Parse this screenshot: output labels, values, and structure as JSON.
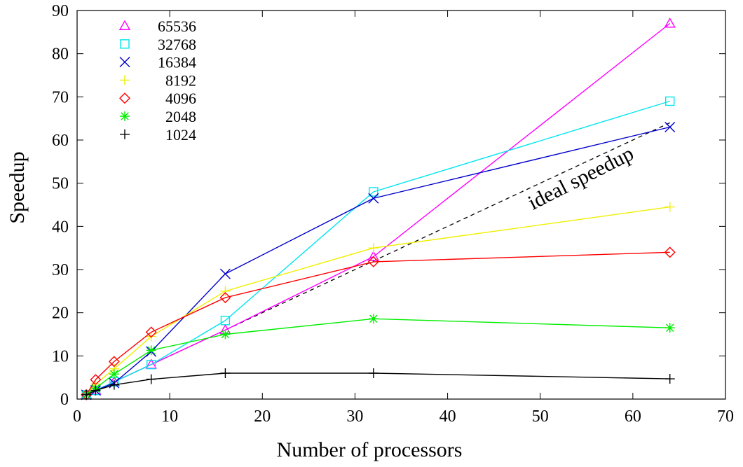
{
  "chart_data": {
    "type": "line",
    "title": "",
    "xlabel": "Number of processors",
    "ylabel": "Speedup",
    "xlim": [
      0,
      70
    ],
    "ylim": [
      0,
      90
    ],
    "xticks": [
      0,
      10,
      20,
      30,
      40,
      50,
      60,
      70
    ],
    "yticks": [
      0,
      10,
      20,
      30,
      40,
      50,
      60,
      70,
      80,
      90
    ],
    "grid": false,
    "legend_position": "top-left",
    "annotation": "ideal speedup",
    "ideal_line": {
      "x": [
        1,
        64
      ],
      "y": [
        1,
        64
      ],
      "style": "dashed",
      "color": "#000000"
    },
    "series": [
      {
        "name": "65536",
        "color": "#ff00ff",
        "marker": "triangle",
        "x": [
          1,
          2,
          4,
          8,
          16,
          32,
          64
        ],
        "y": [
          1,
          2,
          4,
          8,
          16,
          33,
          87
        ]
      },
      {
        "name": "32768",
        "color": "#00e5ee",
        "marker": "square",
        "x": [
          1,
          2,
          4,
          8,
          16,
          32,
          64
        ],
        "y": [
          1,
          2,
          4,
          8,
          18.2,
          48,
          69
        ]
      },
      {
        "name": "16384",
        "color": "#0000cd",
        "marker": "x",
        "x": [
          1,
          2,
          4,
          8,
          16,
          32,
          64
        ],
        "y": [
          1,
          2,
          3.7,
          11,
          29,
          46.5,
          63
        ]
      },
      {
        "name": "8192",
        "color": "#f0f000",
        "marker": "plus",
        "x": [
          1,
          2,
          4,
          8,
          16,
          32,
          64
        ],
        "y": [
          1,
          3.5,
          7,
          14.5,
          25,
          35,
          44.5
        ]
      },
      {
        "name": "4096",
        "color": "#ff0000",
        "marker": "diamond",
        "x": [
          1,
          2,
          4,
          8,
          16,
          32,
          64
        ],
        "y": [
          1,
          4.5,
          8.7,
          15.5,
          23.5,
          31.8,
          34
        ]
      },
      {
        "name": "2048",
        "color": "#00ee00",
        "marker": "star",
        "x": [
          1,
          2,
          4,
          8,
          16,
          32,
          64
        ],
        "y": [
          1,
          2.5,
          5.8,
          11.3,
          15,
          18.6,
          16.5
        ]
      },
      {
        "name": "1024",
        "color": "#000000",
        "marker": "plus",
        "x": [
          1,
          2,
          4,
          8,
          16,
          32,
          64
        ],
        "y": [
          1,
          2,
          3.3,
          4.6,
          6,
          6,
          4.7
        ]
      }
    ]
  }
}
